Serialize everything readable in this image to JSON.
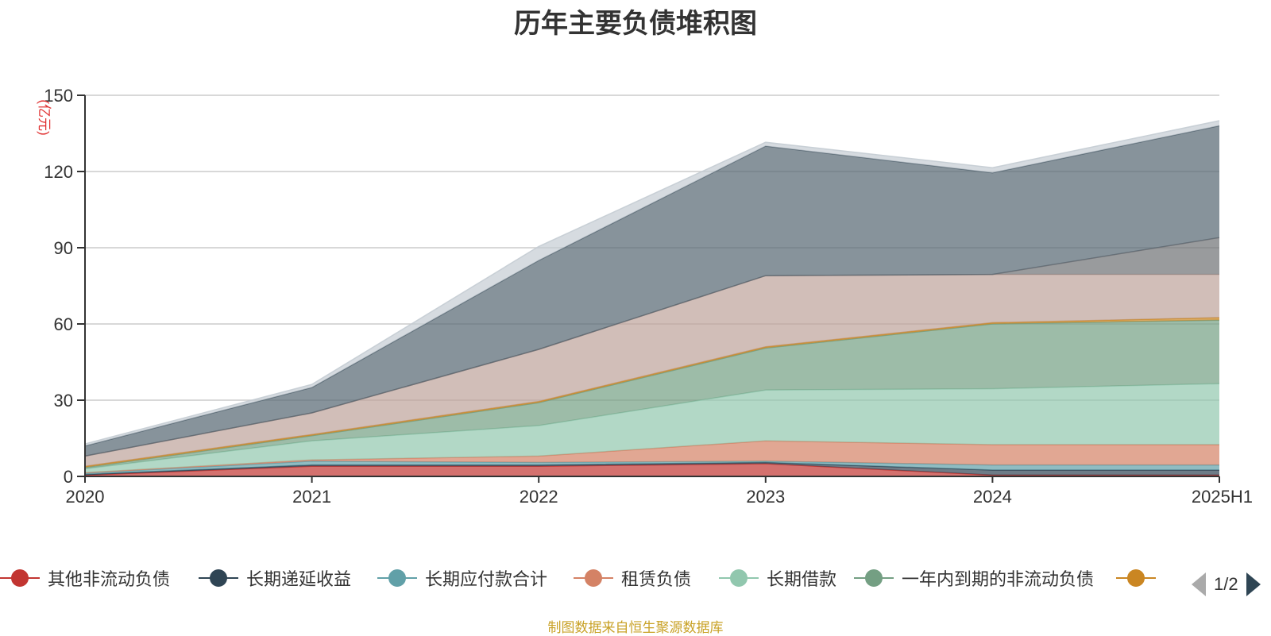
{
  "chart_data": {
    "type": "area",
    "stacked": true,
    "title": "历年主要负债堆积图",
    "unit_label": "(亿元)",
    "categories": [
      "2020",
      "2021",
      "2022",
      "2023",
      "2024",
      "2025H1"
    ],
    "y_ticks": [
      "0",
      "30",
      "60",
      "90",
      "120",
      "150"
    ],
    "ylim": [
      0,
      150
    ],
    "grid": true,
    "legend_position": "bottom",
    "series": [
      {
        "name": "其他非流动负债",
        "color": "#c23531",
        "values": [
          0.5,
          4,
          4,
          5,
          0.5,
          0.5
        ]
      },
      {
        "name": "长期递延收益",
        "color": "#2f4554",
        "values": [
          0.3,
          0.5,
          0.5,
          0.5,
          2,
          2
        ]
      },
      {
        "name": "长期应付款合计",
        "color": "#61a0a8",
        "values": [
          0.5,
          1.5,
          1,
          0.5,
          2,
          2
        ]
      },
      {
        "name": "租赁负债",
        "color": "#d48265",
        "values": [
          0.2,
          0.5,
          2.5,
          8,
          8,
          8
        ]
      },
      {
        "name": "长期借款",
        "color": "#91c7ae",
        "values": [
          1.5,
          7.5,
          12,
          20,
          22,
          24
        ]
      },
      {
        "name": "一年内到期的非流动负债",
        "color": "#749f83",
        "values": [
          0.5,
          2,
          9,
          16.5,
          25.5,
          25
        ]
      },
      {
        "name": "",
        "color": "#ca8622",
        "values": [
          0.5,
          0.5,
          0.5,
          0.5,
          0.5,
          1
        ]
      },
      {
        "name": "",
        "color": "#bda29a",
        "values": [
          4,
          8.5,
          20.5,
          28,
          19,
          17
        ]
      },
      {
        "name": "",
        "color": "#6e7074",
        "values": [
          0,
          0,
          0,
          0,
          0,
          14.5
        ]
      },
      {
        "name": "",
        "color": "#546570",
        "values": [
          4,
          10,
          35,
          51,
          40,
          44
        ]
      },
      {
        "name": "",
        "color": "#c4ccd3",
        "values": [
          0.8,
          1.2,
          5.5,
          1.5,
          2,
          2
        ]
      }
    ],
    "legend_items": [
      {
        "name": "其他非流动负债",
        "color": "#c23531"
      },
      {
        "name": "长期递延收益",
        "color": "#2f4554"
      },
      {
        "name": "长期应付款合计",
        "color": "#61a0a8"
      },
      {
        "name": "租赁负债",
        "color": "#d48265"
      },
      {
        "name": "长期借款",
        "color": "#91c7ae"
      },
      {
        "name": "一年内到期的非流动负债",
        "color": "#749f83"
      },
      {
        "name": "",
        "color": "#ca8622"
      }
    ]
  },
  "legend_pager": {
    "text": "1/2"
  },
  "source_note": "制图数据来自恒生聚源数据库"
}
